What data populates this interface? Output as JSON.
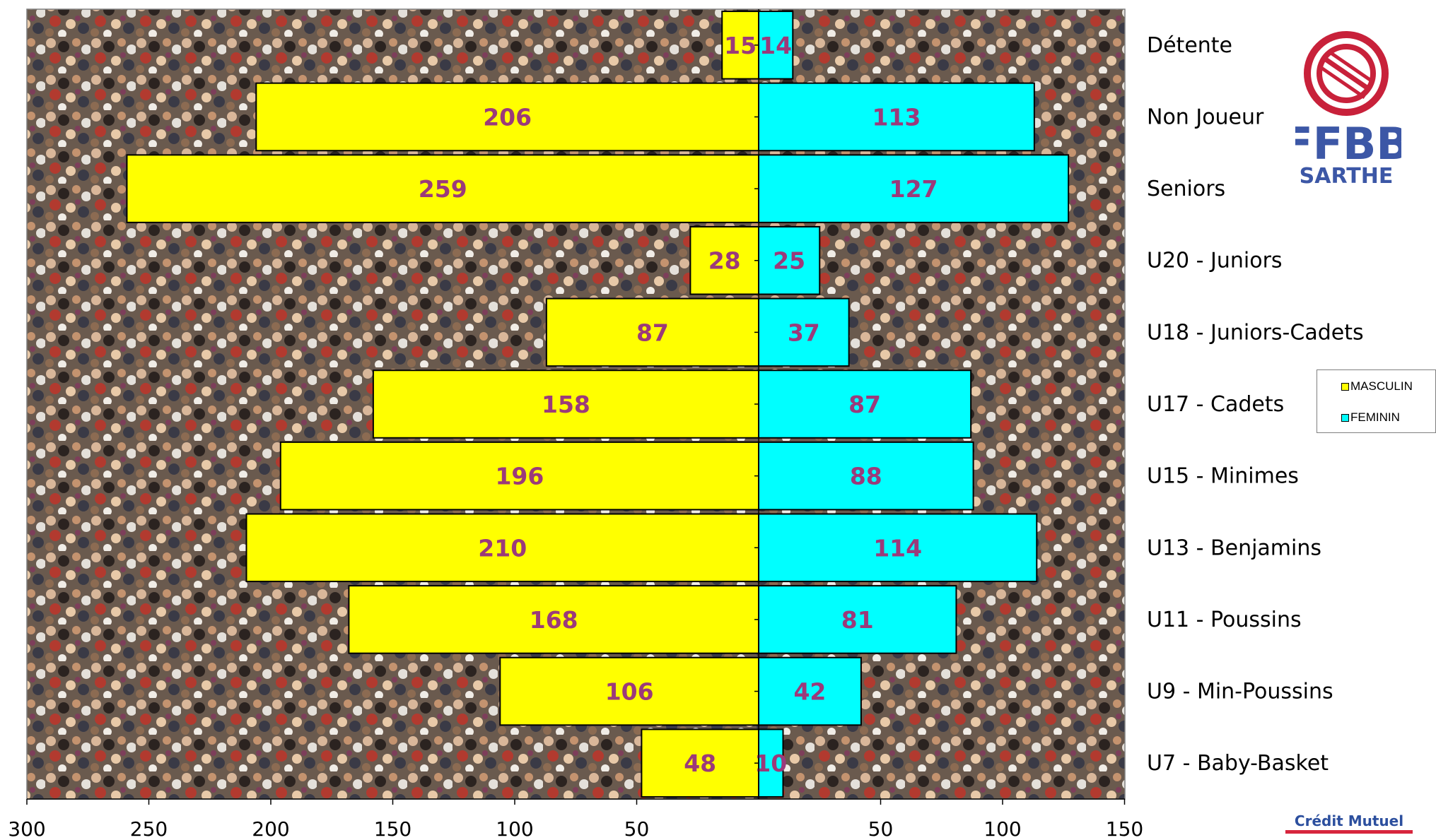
{
  "chart_data": {
    "type": "bar",
    "orientation": "horizontal-population-pyramid",
    "categories": [
      "Détente",
      "Non Joueur",
      "Seniors",
      "U20 - Juniors",
      "U18 - Juniors-Cadets",
      "U17 - Cadets",
      "U15 - Minimes",
      "U13 - Benjamins",
      "U11 - Poussins",
      "U9 - Min-Poussins",
      "U7 - Baby-Basket"
    ],
    "series": [
      {
        "name": "MASCULIN",
        "color": "#ffff00",
        "side": "left",
        "values": [
          15,
          206,
          259,
          28,
          87,
          158,
          196,
          210,
          168,
          106,
          48
        ]
      },
      {
        "name": "FEMININ",
        "color": "#00ffff",
        "side": "right",
        "values": [
          14,
          113,
          127,
          25,
          37,
          87,
          88,
          114,
          81,
          42,
          10
        ]
      }
    ],
    "xlim_left": [
      0,
      300
    ],
    "xlim_right": [
      0,
      150
    ],
    "xticks_left": [
      "300",
      "250",
      "200",
      "150",
      "100",
      "50"
    ],
    "xticks_right": [
      "50",
      "100",
      "150"
    ],
    "value_label_color": "#9b3a7a",
    "legend_position": "right"
  },
  "branding": {
    "logo_text_top": "FFBB",
    "logo_text_bottom": "SARTHE",
    "footer_text": "Crédit Mutuel"
  }
}
